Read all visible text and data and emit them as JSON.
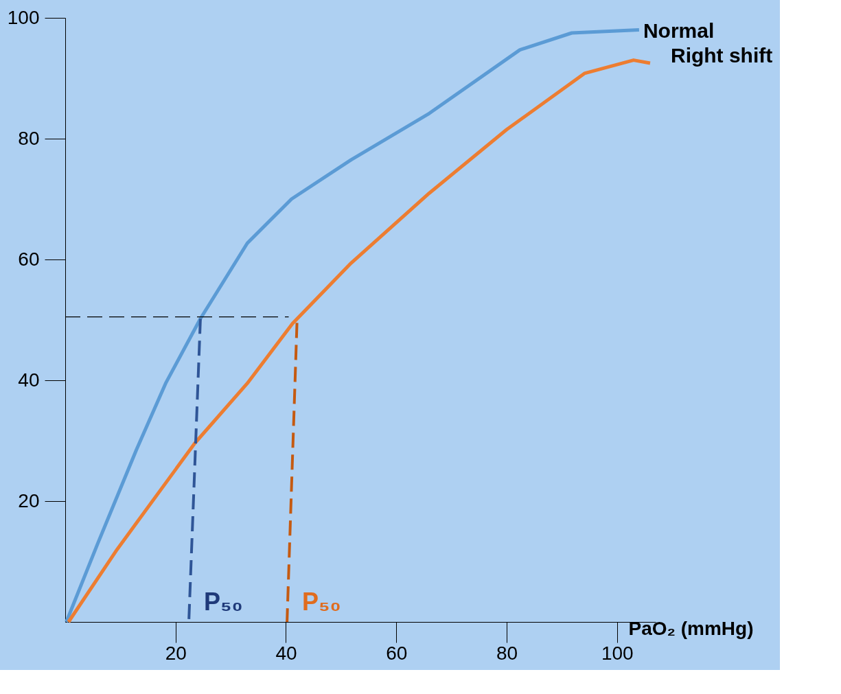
{
  "chart_data": {
    "type": "line",
    "xlabel": "PaO₂ (mmHg)",
    "xlim": [
      0,
      107
    ],
    "xticks": [
      20,
      40,
      60,
      80,
      100
    ],
    "ylim": [
      0,
      100
    ],
    "yticks": [
      20,
      40,
      60,
      80,
      100
    ],
    "grid": false,
    "marker": "none",
    "series": [
      {
        "name": "Normal",
        "color": "#5b9bd5",
        "line_style": "solid",
        "x": [
          0.2,
          5.9,
          12.9,
          18.2,
          24.5,
          33,
          41,
          51.8,
          66,
          82.4,
          91.8,
          104
        ],
        "values": [
          0,
          13,
          28.5,
          39.5,
          50.2,
          62.7,
          70,
          76.5,
          84.2,
          94.7,
          97.5,
          98
        ]
      },
      {
        "name": "Right shift",
        "color": "#ed7d31",
        "line_style": "solid",
        "x": [
          0.6,
          9.4,
          23.5,
          33,
          41.2,
          51.8,
          66,
          80,
          94.1,
          103,
          106
        ],
        "values": [
          0,
          12,
          29.6,
          39.5,
          49.4,
          59.4,
          71,
          81.5,
          90.8,
          93,
          92.5
        ]
      },
      {
        "color": "#000000",
        "line_style": "dashed",
        "x": [
          0,
          40.5
        ],
        "values": [
          50.5,
          50.5
        ]
      },
      {
        "color": "#2f5597",
        "line_style": "dashed",
        "x": [
          24.5,
          22.4
        ],
        "values": [
          50.2,
          0
        ]
      },
      {
        "color": "#c55a11",
        "line_style": "dashed",
        "x": [
          42,
          40.2
        ],
        "values": [
          49.5,
          0
        ]
      }
    ],
    "annotations": [
      {
        "text": "P₅₀",
        "x": 22.4,
        "y": 0
      },
      {
        "text": "P₅₀",
        "x": 40.2,
        "y": 0
      }
    ]
  }
}
